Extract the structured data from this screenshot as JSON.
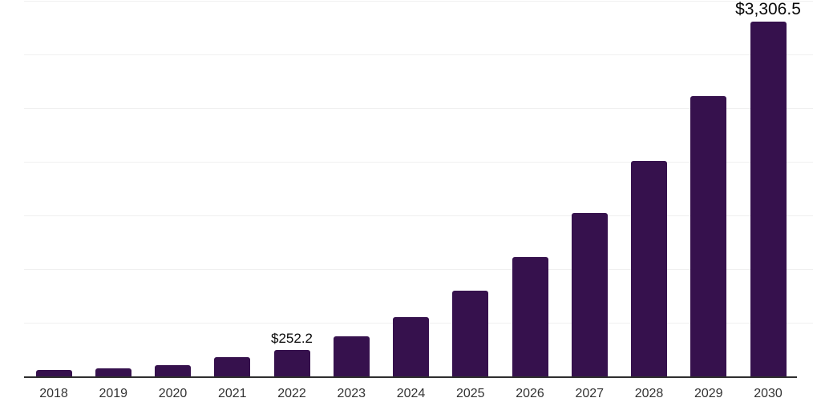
{
  "chart_data": {
    "type": "bar",
    "title": "",
    "xlabel": "",
    "ylabel": "",
    "categories": [
      "2018",
      "2019",
      "2020",
      "2021",
      "2022",
      "2023",
      "2024",
      "2025",
      "2026",
      "2027",
      "2028",
      "2029",
      "2030"
    ],
    "values": [
      65,
      80,
      110,
      180,
      252.2,
      375,
      555,
      800,
      1115,
      1525,
      2010,
      2610,
      3306.5
    ],
    "series_name": "",
    "value_prefix": "$",
    "annotations": [
      {
        "category_index": 4,
        "text": "$252.2",
        "emphasis": false
      },
      {
        "category_index": 12,
        "text": "$3,306.5",
        "emphasis": true
      }
    ],
    "ylim": [
      0,
      3500
    ],
    "gridline_step": 500,
    "grid": true,
    "legend_position": "none",
    "y_tick_labels_visible": false,
    "colors": {
      "bar": "#36114d",
      "gridline": "#f0f0f0",
      "axis_line": "#2e2e2e",
      "tick_label": "#333333",
      "data_label": "#0a0a0a",
      "background": "#ffffff"
    }
  }
}
